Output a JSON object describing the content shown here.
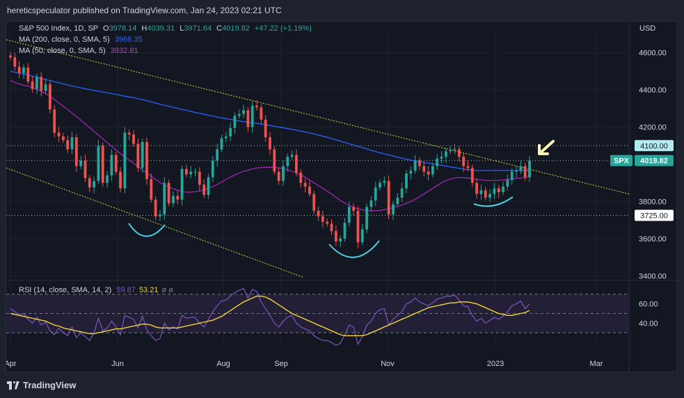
{
  "header": {
    "text": "hereticspeculator published on TradingView.com, Jan 24, 2023 02:21 UTC"
  },
  "legend": {
    "symbol": "S&P 500 Index, 1D, SP",
    "o_label": "O",
    "o_value": "3978.14",
    "h_label": "H",
    "h_value": "4039.31",
    "l_label": "L",
    "l_value": "3971.64",
    "c_label": "C",
    "c_value": "4019.82",
    "change": "+47.22 (+1.19%)",
    "ma200_label": "MA (200, close, 0, SMA, 5)",
    "ma200_value": "3966.35",
    "ma50_label": "MA (50, close, 0, SMA, 5)",
    "ma50_value": "3932.81",
    "rsi_label": "RSI (14, close, SMA, 14, 2)",
    "rsi_value": "59.87",
    "rsi_ma_value": "53.21",
    "rsi_extra": "ø ø"
  },
  "currency": "USD",
  "footer": {
    "brand": "TradingView"
  },
  "colors": {
    "up": "#26a69a",
    "down": "#ef5350",
    "ma200": "#2962ff",
    "ma50": "#9c27b0",
    "trend": "#e6d54a",
    "rsi": "#7e57c2",
    "rsi_ma": "#f7d531",
    "arc": "#4dd0e1",
    "arrow": "#fff3b0"
  },
  "chart_data": {
    "type": "candlestick",
    "title": "S&P 500 Index, 1D, SP",
    "y_axis": {
      "ticks": [
        "4600.00",
        "4400.00",
        "4200.00",
        "3800.00",
        "3600.00",
        "3400.00"
      ],
      "ylim": [
        3390,
        4700
      ]
    },
    "x_axis": {
      "ticks": [
        "Apr",
        "Jun",
        "Aug",
        "Sep",
        "Nov",
        "2023",
        "Mar"
      ]
    },
    "price_labels": [
      {
        "text": "4100.00",
        "value": 4100
      },
      {
        "text": "4019.82",
        "value": 4019.82,
        "symbol": "SPX"
      },
      {
        "text": "3725.00",
        "value": 3725
      }
    ],
    "horizontal_levels": [
      4100,
      4019.82,
      3725
    ],
    "trendlines": [
      {
        "name": "upper-trendline",
        "points": [
          [
            "2022-03-28",
            4670
          ],
          [
            "2023-03-10",
            3840
          ]
        ]
      },
      {
        "name": "lower-trendline",
        "points": [
          [
            "2022-03-28",
            3980
          ],
          [
            "2022-09-27",
            3390
          ]
        ]
      }
    ],
    "close": [
      4575,
      4525,
      4490,
      4520,
      4445,
      4405,
      4470,
      4395,
      4430,
      4295,
      4170,
      4150,
      4130,
      4080,
      4145,
      3990,
      4020,
      3925,
      3875,
      3910,
      4100,
      3900,
      3940,
      4050,
      3960,
      3870,
      4170,
      4160,
      4110,
      3980,
      4120,
      3920,
      3810,
      3720,
      3730,
      3900,
      3790,
      3830,
      3810,
      3975,
      3945,
      3960,
      3960,
      3890,
      3835,
      3930,
      4020,
      4080,
      4140,
      4150,
      4195,
      4260,
      4270,
      4290,
      4200,
      4315,
      4305,
      4240,
      4145,
      4080,
      3960,
      3910,
      3990,
      4040,
      4050,
      3955,
      3900,
      3880,
      3840,
      3750,
      3720,
      3690,
      3680,
      3640,
      3585,
      3600,
      3685,
      3770,
      3750,
      3580,
      3650,
      3770,
      3805,
      3875,
      3900,
      3910,
      3730,
      3785,
      3820,
      3870,
      3950,
      3965,
      4020,
      3990,
      3960,
      3945,
      3990,
      4030,
      4040,
      4070,
      4075,
      4080,
      4040,
      3990,
      3980,
      3900,
      3840,
      3860,
      3820,
      3840,
      3870,
      3850,
      3880,
      3915,
      3960,
      3965,
      3990,
      3930,
      4020
    ],
    "ma200": [
      4500,
      4495,
      4490,
      4485,
      4480,
      4474,
      4468,
      4462,
      4456,
      4450,
      4444,
      4438,
      4432,
      4427,
      4421,
      4416,
      4411,
      4406,
      4402,
      4397,
      4393,
      4388,
      4384,
      4380,
      4376,
      4371,
      4366,
      4362,
      4358,
      4353,
      4347,
      4341,
      4335,
      4329,
      4323,
      4317,
      4312,
      4306,
      4301,
      4295,
      4290,
      4284,
      4279,
      4274,
      4269,
      4264,
      4259,
      4254,
      4249,
      4245,
      4241,
      4237,
      4233,
      4229,
      4226,
      4223,
      4220,
      4216,
      4213,
      4209,
      4204,
      4200,
      4196,
      4192,
      4188,
      4183,
      4178,
      4173,
      4168,
      4163,
      4157,
      4151,
      4145,
      4138,
      4131,
      4124,
      4117,
      4110,
      4103,
      4096,
      4089,
      4082,
      4075,
      4068,
      4062,
      4056,
      4050,
      4044,
      4038,
      4032,
      4027,
      4022,
      4018,
      4014,
      4010,
      4006,
      4002,
      3998,
      3994,
      3990,
      3986,
      3982,
      3978,
      3974,
      3971,
      3968,
      3966,
      3966,
      3966,
      3966,
      3966,
      3966,
      3966,
      3966,
      3966,
      3966,
      3966,
      3966,
      3966
    ],
    "ma50": [
      4450,
      4440,
      4432,
      4425,
      4420,
      4412,
      4403,
      4392,
      4380,
      4365,
      4348,
      4330,
      4312,
      4294,
      4275,
      4257,
      4237,
      4217,
      4197,
      4177,
      4157,
      4137,
      4117,
      4097,
      4077,
      4057,
      4040,
      4022,
      4005,
      3988,
      3970,
      3952,
      3935,
      3918,
      3903,
      3890,
      3878,
      3868,
      3860,
      3854,
      3850,
      3850,
      3852,
      3856,
      3862,
      3870,
      3880,
      3892,
      3905,
      3918,
      3930,
      3942,
      3952,
      3962,
      3968,
      3975,
      3980,
      3982,
      3984,
      3984,
      3982,
      3980,
      3976,
      3970,
      3962,
      3952,
      3942,
      3930,
      3915,
      3900,
      3885,
      3870,
      3855,
      3840,
      3822,
      3806,
      3790,
      3778,
      3768,
      3760,
      3755,
      3752,
      3750,
      3750,
      3752,
      3756,
      3760,
      3766,
      3772,
      3780,
      3790,
      3800,
      3812,
      3825,
      3840,
      3855,
      3870,
      3885,
      3900,
      3912,
      3920,
      3926,
      3928,
      3928,
      3926,
      3922,
      3918,
      3915,
      3913,
      3912,
      3912,
      3913,
      3915,
      3918,
      3921,
      3924,
      3926,
      3929,
      3932.81
    ],
    "rsi": [
      55,
      52,
      48,
      50,
      44,
      40,
      46,
      38,
      41,
      32,
      28,
      35,
      30,
      27,
      36,
      25,
      30,
      26,
      22,
      30,
      45,
      32,
      35,
      42,
      36,
      28,
      48,
      46,
      44,
      35,
      47,
      33,
      27,
      22,
      24,
      40,
      33,
      36,
      34,
      48,
      45,
      46,
      46,
      40,
      36,
      44,
      52,
      58,
      63,
      64,
      68,
      72,
      74,
      76,
      66,
      75,
      73,
      62,
      55,
      48,
      40,
      36,
      42,
      46,
      48,
      40,
      36,
      34,
      32,
      27,
      24,
      22,
      22,
      20,
      17,
      19,
      28,
      38,
      36,
      18,
      26,
      38,
      42,
      50,
      54,
      55,
      38,
      44,
      48,
      52,
      60,
      62,
      66,
      62,
      60,
      58,
      61,
      65,
      66,
      68,
      68,
      69,
      64,
      58,
      57,
      48,
      42,
      45,
      40,
      43,
      46,
      44,
      47,
      52,
      58,
      60,
      63,
      55,
      59.87
    ],
    "rsi_ma": [
      50,
      49,
      48,
      47,
      46,
      45,
      44,
      43,
      42,
      40,
      38,
      37,
      35,
      34,
      33,
      32,
      31,
      30,
      29,
      29,
      30,
      31,
      32,
      33,
      34,
      34,
      35,
      36,
      37,
      38,
      39,
      39,
      38,
      36,
      35,
      35,
      35,
      35,
      35,
      36,
      37,
      38,
      39,
      40,
      41,
      42,
      43,
      45,
      47,
      50,
      53,
      56,
      59,
      62,
      64,
      66,
      68,
      68,
      67,
      65,
      62,
      59,
      56,
      53,
      50,
      48,
      46,
      44,
      42,
      40,
      38,
      36,
      34,
      32,
      30,
      28,
      27,
      27,
      27,
      27,
      27,
      28,
      30,
      32,
      34,
      36,
      38,
      40,
      42,
      44,
      46,
      48,
      50,
      52,
      54,
      56,
      57,
      58,
      59,
      60,
      61,
      61,
      62,
      62,
      62,
      61,
      60,
      58,
      56,
      54,
      52,
      50,
      49,
      48,
      48,
      49,
      50,
      51,
      53.21
    ],
    "rsi_axis": {
      "ticks": [
        "60.00",
        "40.00"
      ],
      "ylim": [
        15,
        80
      ]
    }
  }
}
